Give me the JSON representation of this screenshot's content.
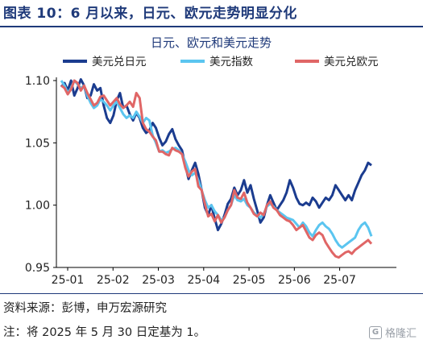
{
  "figure": {
    "title": "图表 10：6 月以来，日元、欧元走势明显分化",
    "source": "资料来源：彭博，申万宏源研究",
    "note": "注：将 2025 年 5 月 30 日定基为 1。",
    "watermark": "格隆汇"
  },
  "chart_data": {
    "type": "line",
    "title": "日元、欧元和美元走势",
    "xlabel": "",
    "ylabel": "",
    "ylim": [
      0.95,
      1.1
    ],
    "yticks": [
      0.95,
      1.0,
      1.05,
      1.1
    ],
    "ytick_labels": [
      "0.95",
      "1.00",
      "1.05",
      "1.10"
    ],
    "xticks": [
      "25-01",
      "25-02",
      "25-03",
      "25-04",
      "25-05",
      "25-06",
      "25-07"
    ],
    "grid": false,
    "legend_position": "top",
    "series": [
      {
        "name": "美元兑日元",
        "color": "#1b3c8f",
        "values": [
          1.095,
          1.098,
          1.092,
          1.1,
          1.088,
          1.094,
          1.101,
          1.096,
          1.086,
          1.088,
          1.097,
          1.092,
          1.094,
          1.08,
          1.07,
          1.066,
          1.072,
          1.084,
          1.09,
          1.078,
          1.08,
          1.073,
          1.068,
          1.074,
          1.07,
          1.062,
          1.058,
          1.06,
          1.066,
          1.062,
          1.054,
          1.048,
          1.051,
          1.057,
          1.061,
          1.053,
          1.048,
          1.044,
          1.032,
          1.021,
          1.028,
          1.034,
          1.025,
          1.012,
          0.998,
          0.992,
          1.0,
          0.989,
          0.98,
          0.985,
          0.992,
          1.001,
          1.005,
          1.014,
          1.008,
          1.012,
          1.02,
          1.01,
          1.016,
          1.005,
          0.996,
          0.986,
          0.99,
          1.0,
          1.008,
          1.002,
          0.996,
          1.0,
          1.004,
          1.01,
          1.02,
          1.014,
          1.006,
          1.001,
          1.0,
          1.002,
          1.0,
          1.006,
          1.003,
          0.998,
          1.002,
          1.006,
          1.004,
          1.008,
          1.016,
          1.012,
          1.008,
          1.004,
          1.008,
          1.004,
          1.012,
          1.018,
          1.024,
          1.028,
          1.034,
          1.032
        ]
      },
      {
        "name": "美元指数",
        "color": "#5bc5f0",
        "values": [
          1.1,
          1.096,
          1.09,
          1.094,
          1.1,
          1.097,
          1.094,
          1.096,
          1.088,
          1.082,
          1.078,
          1.08,
          1.085,
          1.083,
          1.08,
          1.076,
          1.08,
          1.083,
          1.078,
          1.073,
          1.07,
          1.072,
          1.07,
          1.075,
          1.071,
          1.066,
          1.07,
          1.068,
          1.056,
          1.05,
          1.043,
          1.044,
          1.042,
          1.043,
          1.045,
          1.046,
          1.044,
          1.041,
          1.035,
          1.028,
          1.024,
          1.026,
          1.02,
          1.012,
          1.004,
          0.998,
          1.0,
          0.995,
          0.992,
          0.988,
          0.99,
          0.996,
          1.0,
          1.008,
          1.004,
          1.003,
          1.005,
          1.0,
          0.998,
          0.994,
          0.992,
          0.99,
          0.993,
          0.999,
          1.001,
          0.999,
          0.996,
          0.994,
          0.992,
          0.99,
          0.989,
          0.988,
          0.985,
          0.982,
          0.986,
          0.983,
          0.978,
          0.975,
          0.98,
          0.984,
          0.986,
          0.983,
          0.981,
          0.977,
          0.972,
          0.968,
          0.966,
          0.968,
          0.97,
          0.972,
          0.974,
          0.98,
          0.984,
          0.986,
          0.982,
          0.975
        ]
      },
      {
        "name": "美元兑欧元",
        "color": "#e06666",
        "values": [
          1.096,
          1.094,
          1.089,
          1.093,
          1.1,
          1.098,
          1.092,
          1.096,
          1.09,
          1.085,
          1.08,
          1.082,
          1.087,
          1.088,
          1.084,
          1.08,
          1.083,
          1.086,
          1.081,
          1.078,
          1.08,
          1.083,
          1.079,
          1.09,
          1.086,
          1.066,
          1.061,
          1.059,
          1.055,
          1.052,
          1.043,
          1.043,
          1.041,
          1.04,
          1.046,
          1.044,
          1.043,
          1.041,
          1.03,
          1.023,
          1.027,
          1.029,
          1.015,
          1.012,
          1.001,
          0.991,
          0.993,
          0.987,
          0.992,
          0.986,
          0.99,
          0.996,
          1.0,
          1.012,
          1.006,
          1.005,
          1.01,
          1.002,
          0.998,
          0.993,
          0.991,
          0.994,
          0.992,
          1.0,
          1.003,
          0.998,
          0.996,
          0.992,
          0.99,
          0.988,
          0.987,
          0.984,
          0.98,
          0.982,
          0.984,
          0.979,
          0.974,
          0.972,
          0.976,
          0.978,
          0.976,
          0.97,
          0.966,
          0.962,
          0.959,
          0.958,
          0.96,
          0.962,
          0.963,
          0.961,
          0.964,
          0.966,
          0.968,
          0.97,
          0.972,
          0.969
        ]
      }
    ]
  }
}
